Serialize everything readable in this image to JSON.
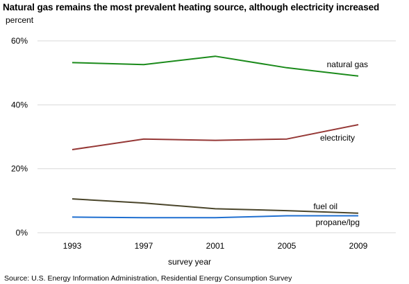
{
  "title": "Natural gas remains the most prevalent heating source, although electricity increased",
  "unit_label": "percent",
  "source": "Source:  U.S. Energy Information Administration, Residential Energy Consumption Survey",
  "chart_data": {
    "type": "line",
    "title": "Natural gas remains the most prevalent heating source, although electricity increased",
    "xlabel": "survey year",
    "ylabel": "percent",
    "x": [
      "1993",
      "1997",
      "2001",
      "2005",
      "2009"
    ],
    "ylim": [
      0,
      60
    ],
    "yticks": [
      0,
      20,
      40,
      60
    ],
    "ytick_labels": [
      "0%",
      "20%",
      "40%",
      "60%"
    ],
    "grid": true,
    "series": [
      {
        "name": "natural gas",
        "color": "#1a8a1a",
        "values": [
          53.2,
          52.6,
          55.2,
          51.6,
          49.0
        ]
      },
      {
        "name": "electricity",
        "color": "#953735",
        "values": [
          26.0,
          29.3,
          28.9,
          29.3,
          33.8
        ]
      },
      {
        "name": "fuel oil",
        "color": "#4a452a",
        "values": [
          10.6,
          9.3,
          7.5,
          6.9,
          6.1
        ]
      },
      {
        "name": "propane/lpg",
        "color": "#1f6fd0",
        "values": [
          4.9,
          4.7,
          4.7,
          5.3,
          5.3
        ]
      }
    ]
  }
}
